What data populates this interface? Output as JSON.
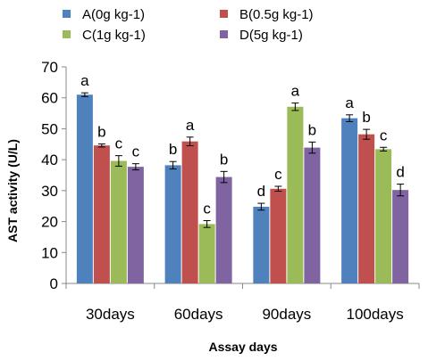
{
  "chart_data": {
    "type": "bar",
    "title": "",
    "xlabel": "Assay days",
    "ylabel": "AST activity (U/L)",
    "ylim": [
      0,
      70
    ],
    "yticks": [
      0,
      10,
      20,
      30,
      40,
      50,
      60,
      70
    ],
    "grid": false,
    "legend_position": "top",
    "categories": [
      "30days",
      "60days",
      "90days",
      "100days"
    ],
    "series": [
      {
        "name": "A(0g kg-1)",
        "color": "#4f81bd",
        "values": [
          61.0,
          38.2,
          24.8,
          53.4
        ],
        "errors": [
          0.6,
          1.2,
          1.1,
          1.1
        ],
        "letters": [
          "a",
          "b",
          "d",
          "a"
        ]
      },
      {
        "name": "B(0.5g kg-1)",
        "color": "#c0504d",
        "values": [
          44.6,
          45.9,
          30.6,
          48.2
        ],
        "errors": [
          0.5,
          1.4,
          0.8,
          1.6
        ],
        "letters": [
          "b",
          "a",
          "c",
          "b"
        ]
      },
      {
        "name": "C(1g kg-1)",
        "color": "#9bbb59",
        "values": [
          39.6,
          19.2,
          57.1,
          43.4
        ],
        "errors": [
          1.7,
          1.1,
          1.2,
          0.6
        ],
        "letters": [
          "c",
          "c",
          "a",
          "c"
        ]
      },
      {
        "name": "D(5g kg-1)",
        "color": "#8064a2",
        "values": [
          37.7,
          34.4,
          43.9,
          30.2
        ],
        "errors": [
          1.0,
          1.8,
          1.8,
          1.9
        ],
        "letters": [
          "c",
          "b",
          "b",
          "d"
        ]
      }
    ]
  }
}
